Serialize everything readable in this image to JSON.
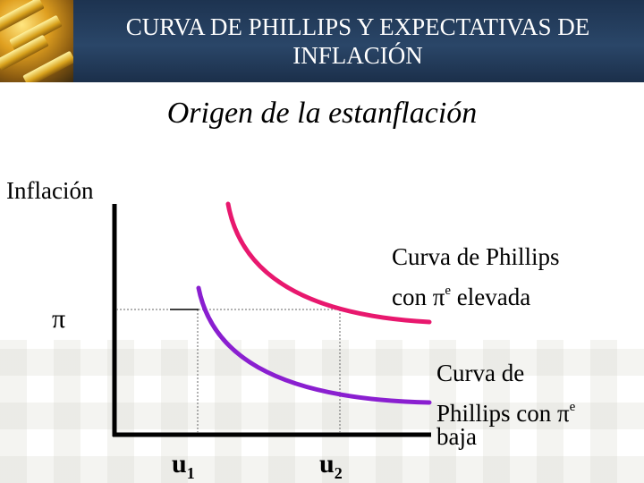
{
  "header": {
    "title_line1": "CURVA DE PHILLIPS Y EXPECTATIVAS DE",
    "title_line2": "INFLACIÓN"
  },
  "subtitle": "Origen de la estanflación",
  "axes": {
    "y_label": "Inflación",
    "pi_marker": "π",
    "u1_base": "u",
    "u1_sub": "1",
    "u2_base": "u",
    "u2_sub": "2"
  },
  "curves": {
    "high": {
      "line1": "Curva de Phillips",
      "line2_pre": "con  π",
      "line2_sup": "e",
      "line2_post": "  elevada",
      "color": "#e8186e"
    },
    "low": {
      "line1": "Curva de",
      "line2_pre": "Phillips con  π",
      "line2_sup": "e",
      "line3": "baja",
      "color": "#8a1fd0"
    }
  },
  "colors": {
    "header_bg": "#243d5e",
    "axis": "#000000"
  }
}
